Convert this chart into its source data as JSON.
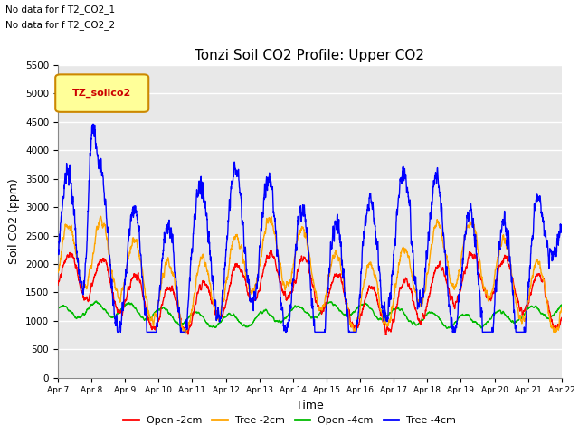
{
  "title": "Tonzi Soil CO2 Profile: Upper CO2",
  "ylabel": "Soil CO2 (ppm)",
  "xlabel": "Time",
  "annotations": [
    "No data for f T2_CO2_1",
    "No data for f T2_CO2_2"
  ],
  "legend_label": "TZ_soilco2",
  "ylim": [
    0,
    5500
  ],
  "x_tick_labels": [
    "Apr 7",
    "Apr 8",
    "Apr 9",
    "Apr 10",
    "Apr 11",
    "Apr 12",
    "Apr 13",
    "Apr 14",
    "Apr 15",
    "Apr 16",
    "Apr 17",
    "Apr 18",
    "Apr 19",
    "Apr 20",
    "Apr 21",
    "Apr 22"
  ],
  "series": {
    "open_2cm": {
      "label": "Open -2cm",
      "color": "#FF0000"
    },
    "tree_2cm": {
      "label": "Tree -2cm",
      "color": "#FFA500"
    },
    "open_4cm": {
      "label": "Open -4cm",
      "color": "#00BB00"
    },
    "tree_4cm": {
      "label": "Tree -4cm",
      "color": "#0000FF"
    }
  },
  "background_color": "#E8E8E8",
  "grid_color": "#FFFFFF",
  "n_points": 3000
}
